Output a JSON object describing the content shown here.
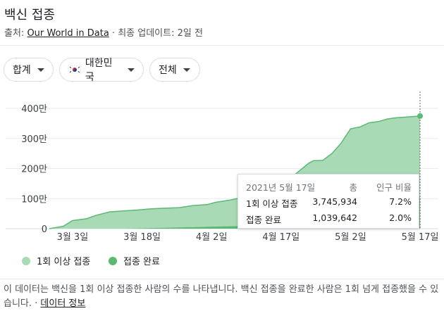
{
  "header": {
    "title": "백신 접종",
    "source_prefix": "출처: ",
    "source_link": "Our World in Data",
    "updated": " · 최종 업데이트: 2일 전"
  },
  "filters": {
    "dose": "합계",
    "country": "대한민국",
    "population": "전체"
  },
  "tooltip": {
    "date": "2021년 5월 17일",
    "col_total": "총",
    "col_pct": "인구 비율",
    "rows": [
      {
        "label": "1회 이상 접종",
        "total": "3,745,934",
        "pct": "7.2%"
      },
      {
        "label": "접종 완료",
        "total": "1,039,642",
        "pct": "2.0%"
      }
    ]
  },
  "legend": {
    "first": "1회 이상 접종",
    "complete": "접종 완료"
  },
  "footer": {
    "note": "이 데이터는 백신을 1회 이상 접종한 사람의 수를 나타냅니다. 백신 접종을 완료한 사람은 1회 넘게 접종했을 수 있습니다.",
    "separator": " · ",
    "link": "데이터 정보"
  },
  "colors": {
    "first_dose_fill": "#a8dab5",
    "first_dose_line": "#5bb974",
    "complete": "#5bb974",
    "grid": "#e8eaed"
  },
  "chart_data": {
    "type": "area",
    "x_unit": "2021 dates",
    "x": [
      "2021-02-26",
      "2021-03-01",
      "2021-03-03",
      "2021-03-06",
      "2021-03-08",
      "2021-03-11",
      "2021-03-14",
      "2021-03-17",
      "2021-03-20",
      "2021-03-23",
      "2021-03-26",
      "2021-03-29",
      "2021-04-01",
      "2021-04-03",
      "2021-04-06",
      "2021-04-09",
      "2021-04-12",
      "2021-04-15",
      "2021-04-17",
      "2021-04-20",
      "2021-04-23",
      "2021-04-24",
      "2021-04-26",
      "2021-04-28",
      "2021-04-30",
      "2021-05-02",
      "2021-05-04",
      "2021-05-06",
      "2021-05-08",
      "2021-05-10",
      "2021-05-12",
      "2021-05-14",
      "2021-05-17"
    ],
    "series": [
      {
        "name": "1회 이상 접종",
        "values": [
          0,
          80000,
          270000,
          330000,
          440000,
          560000,
          590000,
          620000,
          660000,
          680000,
          700000,
          770000,
          800000,
          880000,
          950000,
          1050000,
          1120000,
          1300000,
          1430000,
          1800000,
          2180000,
          2260000,
          2270000,
          2500000,
          2850000,
          3320000,
          3380000,
          3520000,
          3560000,
          3650000,
          3690000,
          3710000,
          3745934
        ]
      },
      {
        "name": "접종 완료",
        "values": [
          0,
          0,
          0,
          0,
          0,
          0,
          0,
          10000,
          20000,
          30000,
          40000,
          50000,
          60000,
          70000,
          80000,
          90000,
          100000,
          130000,
          160000,
          200000,
          240000,
          260000,
          280000,
          320000,
          380000,
          480000,
          560000,
          680000,
          790000,
          880000,
          950000,
          1000000,
          1039642
        ]
      }
    ],
    "ylim": [
      0,
      4000000
    ],
    "y_ticks": [
      {
        "value": 0,
        "label": "0"
      },
      {
        "value": 1000000,
        "label": "100만"
      },
      {
        "value": 2000000,
        "label": "200만"
      },
      {
        "value": 3000000,
        "label": "300만"
      },
      {
        "value": 4000000,
        "label": "400만"
      }
    ],
    "x_ticks": [
      {
        "date": "2021-03-03",
        "label": "3월 3일"
      },
      {
        "date": "2021-03-18",
        "label": "3월 18일"
      },
      {
        "date": "2021-04-02",
        "label": "4월 2일"
      },
      {
        "date": "2021-04-17",
        "label": "4월 17일"
      },
      {
        "date": "2021-05-02",
        "label": "5월 2일"
      },
      {
        "date": "2021-05-17",
        "label": "5월 17일"
      }
    ],
    "grid": true,
    "highlight_date": "2021-05-17",
    "legend_position": "bottom-left"
  }
}
